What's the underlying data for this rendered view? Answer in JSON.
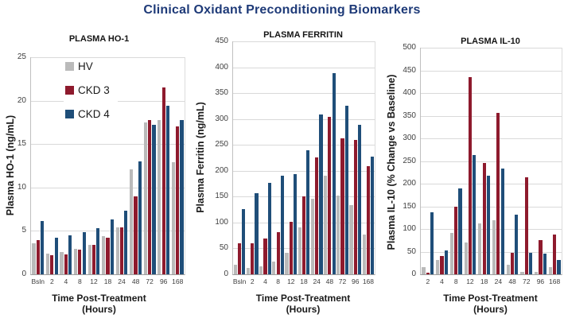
{
  "title": "Clinical Oxidant Preconditioning Biomarkers",
  "colors": {
    "title_text": "#1E3A78",
    "hv": "#BABABA",
    "ckd3": "#8E1A2D",
    "ckd4": "#1F4E79",
    "gridline": "#D9D9D9",
    "axis_line": "#BFBFBF",
    "tick_text": "#3F3F3F"
  },
  "legend": {
    "position": "inside top-left of first chart",
    "items": [
      {
        "label": "HV",
        "color": "#BABABA"
      },
      {
        "label": "CKD 3",
        "color": "#8E1A2D"
      },
      {
        "label": "CKD 4",
        "color": "#1F4E79"
      }
    ]
  },
  "chart_data": [
    {
      "type": "bar",
      "title": "PLASMA HO-1",
      "ylabel": "Plasma HO-1 (ng/mL)",
      "xlabel": "Time Post-Treatment\n(Hours)",
      "ylim": [
        0,
        25
      ],
      "ytick_step": 5,
      "grid": true,
      "legend_position": "top-left-inside",
      "categories": [
        "Bsln",
        "2",
        "4",
        "8",
        "12",
        "18",
        "24",
        "48",
        "72",
        "96",
        "168"
      ],
      "series": [
        {
          "name": "HV",
          "color": "#BABABA",
          "values": [
            3.6,
            2.4,
            2.6,
            2.9,
            3.4,
            4.4,
            5.4,
            12.1,
            17.5,
            17.8,
            12.9
          ]
        },
        {
          "name": "CKD 3",
          "color": "#8E1A2D",
          "values": [
            3.9,
            2.2,
            2.3,
            2.8,
            3.4,
            4.2,
            5.4,
            9.0,
            17.8,
            21.5,
            17.0
          ]
        },
        {
          "name": "CKD 4",
          "color": "#1F4E79",
          "values": [
            6.1,
            4.2,
            4.5,
            4.9,
            5.3,
            6.3,
            7.3,
            13.0,
            17.2,
            19.4,
            17.8
          ]
        }
      ]
    },
    {
      "type": "bar",
      "title": "PLASMA FERRITIN",
      "ylabel": "Plasma Ferritin (ng/mL)",
      "xlabel": "Time Post-Treatment\n(Hours)",
      "ylim": [
        0,
        450
      ],
      "ytick_step": 50,
      "grid": true,
      "categories": [
        "Bsln",
        "2",
        "4",
        "8",
        "12",
        "18",
        "24",
        "48",
        "72",
        "96",
        "168"
      ],
      "series": [
        {
          "name": "HV",
          "color": "#BABABA",
          "values": [
            18,
            13,
            16,
            24,
            42,
            90,
            146,
            190,
            152,
            133,
            77
          ]
        },
        {
          "name": "CKD 3",
          "color": "#8E1A2D",
          "values": [
            60,
            60,
            69,
            81,
            101,
            150,
            226,
            304,
            263,
            259,
            209
          ]
        },
        {
          "name": "CKD 4",
          "color": "#1F4E79",
          "values": [
            126,
            157,
            177,
            190,
            194,
            240,
            308,
            389,
            326,
            288,
            228
          ]
        }
      ]
    },
    {
      "type": "bar",
      "title": "PLASMA IL-10",
      "ylabel": "Plasma IL-10 (% Change vs Baseline)",
      "xlabel": "Time Post-Treatment\n(Hours)",
      "ylim": [
        0,
        500
      ],
      "ytick_step": 50,
      "grid": true,
      "categories": [
        "2",
        "4",
        "8",
        "12",
        "18",
        "24",
        "48",
        "72",
        "96",
        "168"
      ],
      "series": [
        {
          "name": "HV",
          "color": "#BABABA",
          "values": [
            16,
            32,
            91,
            70,
            113,
            120,
            21,
            5,
            5,
            15
          ]
        },
        {
          "name": "CKD 3",
          "color": "#8E1A2D",
          "values": [
            4,
            40,
            150,
            435,
            246,
            357,
            47,
            214,
            76,
            87
          ]
        },
        {
          "name": "CKD 4",
          "color": "#1F4E79",
          "values": [
            137,
            52,
            190,
            264,
            218,
            234,
            131,
            48,
            45,
            31
          ]
        }
      ]
    }
  ]
}
